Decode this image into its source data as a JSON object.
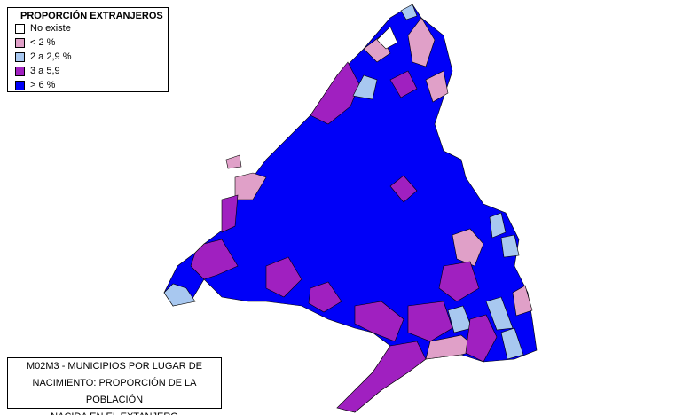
{
  "legend": {
    "title": "PROPORCIÓN EXTRANJEROS",
    "items": [
      {
        "label": "No existe",
        "color": "#ffffff"
      },
      {
        "label": "< 2 %",
        "color": "#e0a0c8"
      },
      {
        "label": "2 a 2,9 %",
        "color": "#a8c8f0"
      },
      {
        "label": "3 a 5,9",
        "color": "#a020c0"
      },
      {
        "label": "> 6 %",
        "color": "#0000f8"
      }
    ]
  },
  "caption": {
    "lines": [
      "M02M3 - MUNICIPIOS POR LUGAR DE",
      "NACIMIENTO: PROPORCIÓN DE LA POBLACIÓN",
      "NACIDA EN EL EXTANJERO"
    ]
  }
}
